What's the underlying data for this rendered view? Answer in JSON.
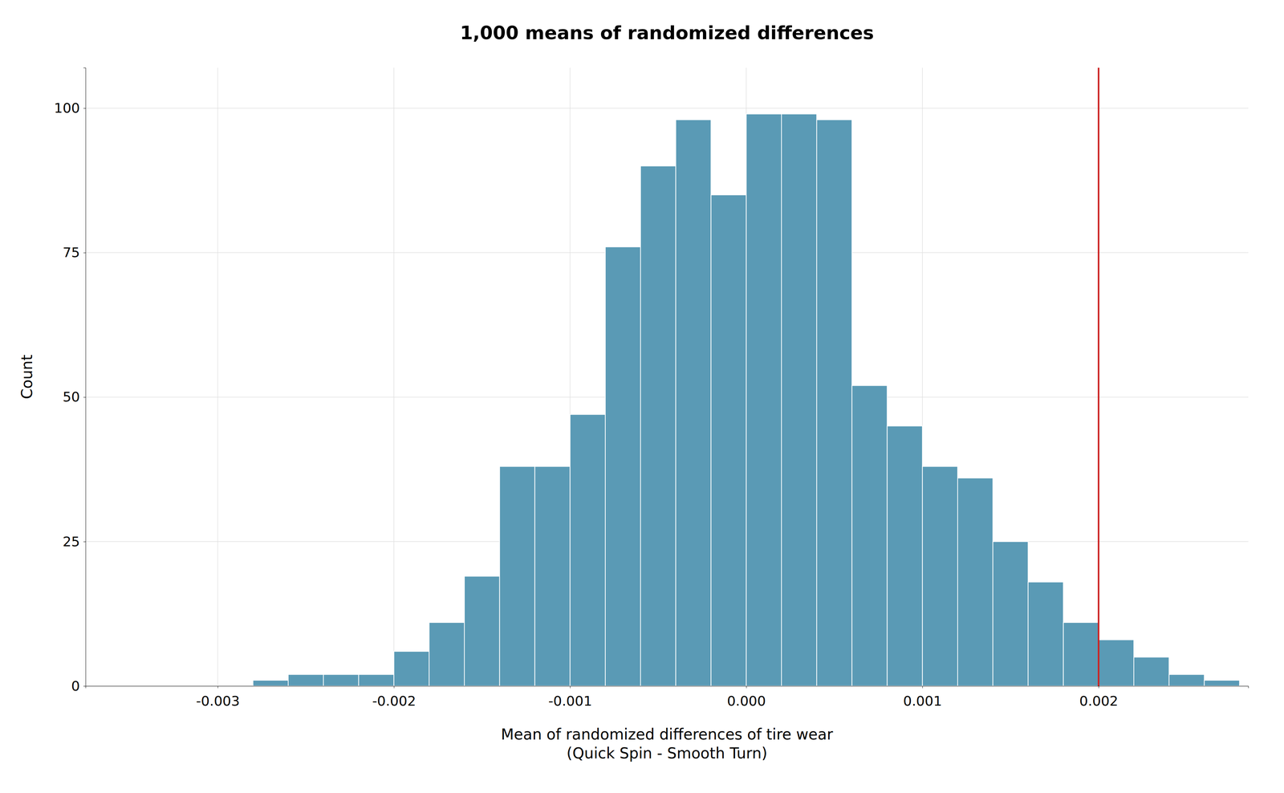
{
  "chart_data": {
    "type": "histogram",
    "title": "1,000 means of randomized differences",
    "x_label": "Mean of randomized differences of tire wear\n(Quick Spin - Smooth Turn)",
    "y_label": "Count",
    "bins": [
      -0.0028,
      -0.0026,
      -0.0024,
      -0.0022,
      -0.002,
      -0.0018,
      -0.0016,
      -0.0014,
      -0.0012,
      -0.001,
      -0.0008,
      -0.0006,
      -0.0004,
      -0.0002,
      0,
      0.0002,
      0.0004,
      0.0006,
      0.0008,
      0.001,
      0.0012,
      0.0014,
      0.0016,
      0.0018,
      0.002,
      0.0022,
      0.0024,
      0.0026,
      0.0028
    ],
    "values": [
      1,
      2,
      2,
      2,
      6,
      11,
      19,
      38,
      38,
      47,
      76,
      90,
      98,
      85,
      99,
      99,
      98,
      52,
      45,
      38,
      36,
      25,
      18,
      11,
      8,
      5,
      2,
      1
    ],
    "color": "#5a9ab5",
    "annotations": [
      {
        "type": "vline",
        "x": 0.002,
        "color": "#cc2222"
      }
    ],
    "xlim": [
      -0.00375,
      0.00285
    ],
    "ylim": [
      0,
      107
    ],
    "xticks": [
      -0.003,
      -0.002,
      -0.001,
      {
        "value": 0,
        "label": "0.000"
      },
      0.001,
      0.002
    ],
    "yticks": [
      0,
      25,
      50,
      75,
      100
    ],
    "grid": true
  }
}
